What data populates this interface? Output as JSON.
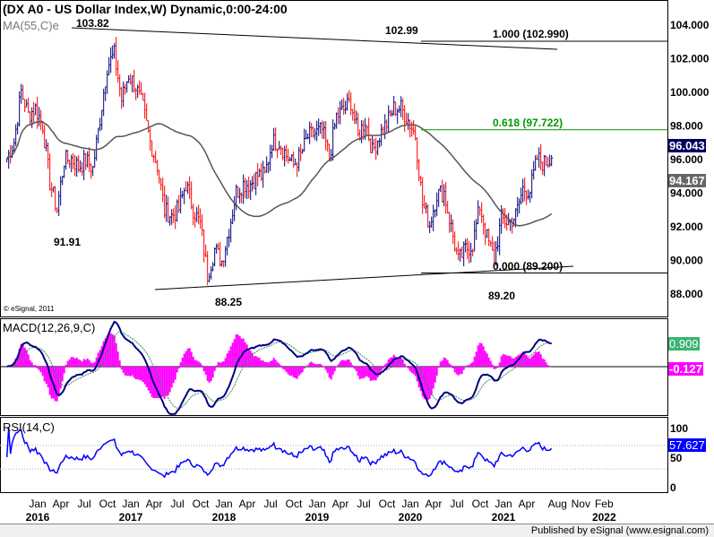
{
  "title": "(DX A0 - US Dollar Index,W) Dynamic,0:00-24:00",
  "ma_label": "MA(55,C)e",
  "macd_label": "MACD(12,26,9,C)",
  "rsi_label": "RSI(14,C)",
  "copyright": "© eSignal, 2011",
  "footer": "Published by eSignal (www.esignal.com)",
  "colors": {
    "up": "#00007f",
    "down": "#ff0000",
    "ma": "#555555",
    "macd": "#000080",
    "signal": "#2e8b57",
    "hist": "#ff00ff",
    "rsi": "#0000ff",
    "fib618": "#009900"
  },
  "tags": {
    "price": "96.043",
    "ma": "94.167",
    "macd": "0.909",
    "hist": "-0.127",
    "rsi": "57.627"
  },
  "chart_data": {
    "type": "ohlc-bar",
    "price_axis": {
      "range": [
        88,
        104
      ],
      "ticks": [
        "104.000",
        "102.000",
        "100.000",
        "98.000",
        "96.000",
        "94.000",
        "92.000",
        "90.000",
        "88.000"
      ]
    },
    "rsi_axis": {
      "ticks": [
        "100",
        "50",
        "0"
      ]
    },
    "x_ticks": [
      {
        "m": "Jan",
        "y": "2016",
        "t": 2016
      },
      {
        "m": "Apr",
        "t": 2016.25
      },
      {
        "m": "Jul",
        "t": 2016.5
      },
      {
        "m": "Oct",
        "t": 2016.75
      },
      {
        "m": "Jan",
        "y": "2017",
        "t": 2017
      },
      {
        "m": "Apr",
        "t": 2017.25
      },
      {
        "m": "Jul",
        "t": 2017.5
      },
      {
        "m": "Oct",
        "t": 2017.75
      },
      {
        "m": "Jan",
        "y": "2018",
        "t": 2018
      },
      {
        "m": "Apr",
        "t": 2018.25
      },
      {
        "m": "Jul",
        "t": 2018.5
      },
      {
        "m": "Oct",
        "t": 2018.75
      },
      {
        "m": "Jan",
        "y": "2019",
        "t": 2019
      },
      {
        "m": "Apr",
        "t": 2019.25
      },
      {
        "m": "Jul",
        "t": 2019.5
      },
      {
        "m": "Oct",
        "t": 2019.75
      },
      {
        "m": "Jan",
        "y": "2020",
        "t": 2020
      },
      {
        "m": "Apr",
        "t": 2020.25
      },
      {
        "m": "Jul",
        "t": 2020.5
      },
      {
        "m": "Oct",
        "t": 2020.75
      },
      {
        "m": "Jan",
        "y": "2021",
        "t": 2021
      },
      {
        "m": "Apr",
        "t": 2021.25
      },
      {
        "m": "Aug",
        "t": 2021.58
      },
      {
        "m": "Nov",
        "t": 2021.83
      },
      {
        "m": "Feb",
        "y": "2022",
        "t": 2022.08
      }
    ],
    "start": 2015.67,
    "monthly_closes": [
      96,
      97,
      100,
      98.6,
      99,
      98,
      94.6,
      93,
      95.9,
      96,
      95.5,
      95.9,
      95.4,
      98.4,
      101.5,
      102.2,
      99.5,
      101,
      100.3,
      99,
      97,
      95.6,
      92.9,
      92.6,
      93,
      94.5,
      93,
      92.1,
      89.1,
      90.6,
      89.9,
      91.8,
      94,
      94.5,
      94.5,
      95,
      95,
      97,
      97,
      96.2,
      95.6,
      96.2,
      97.3,
      97.5,
      97.7,
      96.1,
      98.5,
      98.9,
      99.4,
      97.3,
      98.3,
      96.4,
      97.4,
      98.1,
      99,
      99,
      98.3,
      97.4,
      93.3,
      92.1,
      93.9,
      94,
      91.9,
      89.9,
      90.6,
      90.9,
      93.2,
      91.3,
      90,
      92.4,
      92.2,
      92.6,
      94.2,
      94.1,
      96,
      95.7,
      96.04
    ],
    "annotations": [
      {
        "text": "103.82",
        "price": 103.82
      },
      {
        "text": "91.91",
        "price": 91.91
      },
      {
        "text": "88.25",
        "price": 88.25
      },
      {
        "text": "102.99",
        "price": 102.99
      },
      {
        "text": "89.20",
        "price": 89.2
      },
      {
        "text": "1.000 (102.990)",
        "price": 102.99
      },
      {
        "text": "0.618 (97.722)",
        "price": 97.722
      },
      {
        "text": "0.000 (89.200)",
        "price": 89.2
      }
    ]
  }
}
